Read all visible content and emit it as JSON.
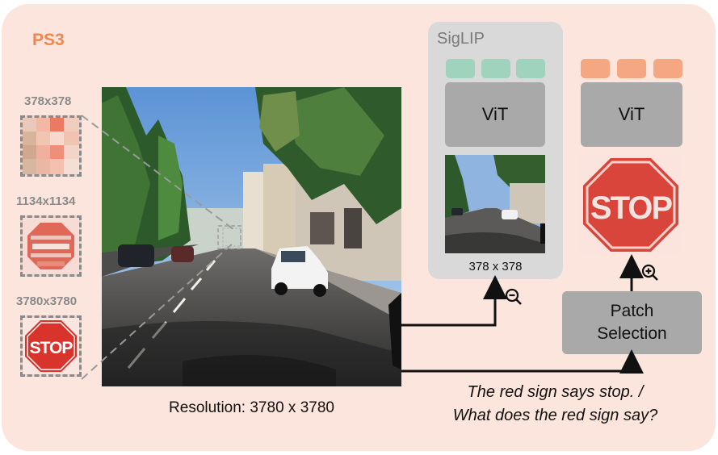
{
  "badge": "PS3",
  "scales": [
    {
      "label": "378x378"
    },
    {
      "label": "1134x1134"
    },
    {
      "label": "3780x3780"
    }
  ],
  "resolution_label": "Resolution: 3780 x 3780",
  "siglip": {
    "title": "SigLIP",
    "encoder_label": "ViT",
    "input_size": "378 x 378"
  },
  "highres_branch": {
    "encoder_label": "ViT",
    "patch_selection_line1": "Patch",
    "patch_selection_line2": "Selection"
  },
  "sign_text": "STOP",
  "caption": {
    "line1": "The red sign says stop. /",
    "line2": "What does the red sign say?"
  },
  "icons": {
    "zoom_out": "zoom-out-icon",
    "zoom_in": "zoom-in-icon"
  },
  "colors": {
    "panel_bg": "#fce5dc",
    "accent_orange": "#f0864f",
    "token_green": "#9fd3bd",
    "token_orange": "#f4a781",
    "box_gray": "#a9a9a9",
    "siglip_bg": "#d9d9d9",
    "stop_red": "#d9342b"
  }
}
